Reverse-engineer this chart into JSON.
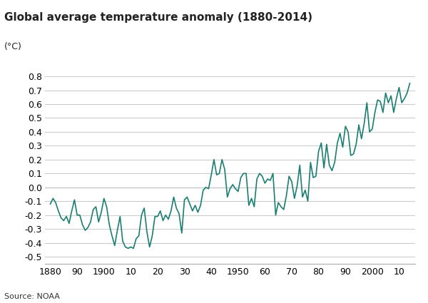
{
  "title": "Global average temperature anomaly (1880-2014)",
  "ylabel": "(°C)",
  "source": "Source: NOAA",
  "line_color": "#1a7f72",
  "line_width": 1.2,
  "background_color": "#ffffff",
  "grid_color": "#cccccc",
  "ylim": [
    -0.55,
    0.87
  ],
  "xlim": [
    1878,
    2016
  ],
  "yticks": [
    -0.5,
    -0.4,
    -0.3,
    -0.2,
    -0.1,
    0.0,
    0.1,
    0.2,
    0.3,
    0.4,
    0.5,
    0.6,
    0.7,
    0.8
  ],
  "xtick_labels": [
    "1880",
    "90",
    "1900",
    "10",
    "20",
    "30",
    "40",
    "1950",
    "60",
    "70",
    "80",
    "90",
    "2000",
    "10"
  ],
  "xtick_positions": [
    1880,
    1890,
    1900,
    1910,
    1920,
    1930,
    1940,
    1950,
    1960,
    1970,
    1980,
    1990,
    2000,
    2010
  ],
  "years": [
    1880,
    1881,
    1882,
    1883,
    1884,
    1885,
    1886,
    1887,
    1888,
    1889,
    1890,
    1891,
    1892,
    1893,
    1894,
    1895,
    1896,
    1897,
    1898,
    1899,
    1900,
    1901,
    1902,
    1903,
    1904,
    1905,
    1906,
    1907,
    1908,
    1909,
    1910,
    1911,
    1912,
    1913,
    1914,
    1915,
    1916,
    1917,
    1918,
    1919,
    1920,
    1921,
    1922,
    1923,
    1924,
    1925,
    1926,
    1927,
    1928,
    1929,
    1930,
    1931,
    1932,
    1933,
    1934,
    1935,
    1936,
    1937,
    1938,
    1939,
    1940,
    1941,
    1942,
    1943,
    1944,
    1945,
    1946,
    1947,
    1948,
    1949,
    1950,
    1951,
    1952,
    1953,
    1954,
    1955,
    1956,
    1957,
    1958,
    1959,
    1960,
    1961,
    1962,
    1963,
    1964,
    1965,
    1966,
    1967,
    1968,
    1969,
    1970,
    1971,
    1972,
    1973,
    1974,
    1975,
    1976,
    1977,
    1978,
    1979,
    1980,
    1981,
    1982,
    1983,
    1984,
    1985,
    1986,
    1987,
    1988,
    1989,
    1990,
    1991,
    1992,
    1993,
    1994,
    1995,
    1996,
    1997,
    1998,
    1999,
    2000,
    2001,
    2002,
    2003,
    2004,
    2005,
    2006,
    2007,
    2008,
    2009,
    2010,
    2011,
    2012,
    2013,
    2014
  ],
  "anomalies": [
    -0.12,
    -0.08,
    -0.11,
    -0.17,
    -0.22,
    -0.24,
    -0.21,
    -0.26,
    -0.17,
    -0.09,
    -0.2,
    -0.2,
    -0.27,
    -0.31,
    -0.29,
    -0.25,
    -0.16,
    -0.14,
    -0.25,
    -0.18,
    -0.08,
    -0.14,
    -0.27,
    -0.35,
    -0.42,
    -0.31,
    -0.21,
    -0.39,
    -0.43,
    -0.44,
    -0.43,
    -0.44,
    -0.37,
    -0.35,
    -0.2,
    -0.15,
    -0.32,
    -0.43,
    -0.35,
    -0.21,
    -0.21,
    -0.17,
    -0.24,
    -0.2,
    -0.23,
    -0.17,
    -0.07,
    -0.15,
    -0.19,
    -0.33,
    -0.09,
    -0.07,
    -0.12,
    -0.17,
    -0.13,
    -0.18,
    -0.13,
    -0.02,
    -0.0,
    -0.01,
    0.09,
    0.2,
    0.09,
    0.1,
    0.2,
    0.13,
    -0.07,
    -0.01,
    0.02,
    -0.01,
    -0.03,
    0.07,
    0.1,
    0.1,
    -0.13,
    -0.08,
    -0.14,
    0.06,
    0.1,
    0.08,
    0.03,
    0.06,
    0.05,
    0.1,
    -0.2,
    -0.11,
    -0.14,
    -0.16,
    -0.06,
    0.08,
    0.04,
    -0.08,
    0.01,
    0.16,
    -0.07,
    -0.02,
    -0.1,
    0.18,
    0.07,
    0.08,
    0.26,
    0.32,
    0.14,
    0.31,
    0.16,
    0.12,
    0.18,
    0.32,
    0.39,
    0.29,
    0.44,
    0.4,
    0.23,
    0.24,
    0.31,
    0.45,
    0.35,
    0.46,
    0.61,
    0.4,
    0.42,
    0.54,
    0.63,
    0.62,
    0.54,
    0.68,
    0.61,
    0.66,
    0.54,
    0.64,
    0.72,
    0.61,
    0.64,
    0.68,
    0.75
  ]
}
